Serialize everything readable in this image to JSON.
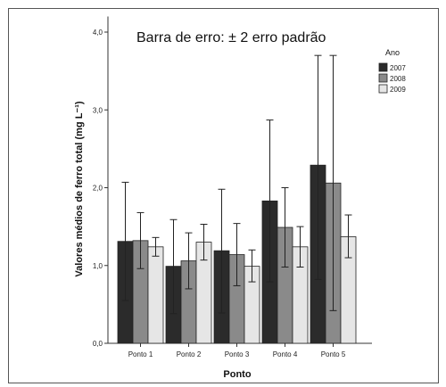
{
  "chart_data": {
    "type": "bar",
    "title": "Barra de erro: ± 2 erro padrão",
    "xlabel": "Ponto",
    "ylabel": "Valores médios de ferro total (mg L⁻¹)",
    "categories": [
      "Ponto 1",
      "Ponto 2",
      "Ponto 3",
      "Ponto 4",
      "Ponto 5"
    ],
    "ylim": [
      0,
      4.2
    ],
    "yticks": [
      "0,0",
      "1,0",
      "2,0",
      "3,0",
      "4,0"
    ],
    "legend_title": "Ano",
    "legend_position": "top-right",
    "series": [
      {
        "name": "2007",
        "color": "#2b2b2b",
        "values": [
          1.31,
          0.99,
          1.19,
          1.83,
          2.29
        ],
        "err_low": [
          0.55,
          0.38,
          0.39,
          0.79,
          0.82
        ],
        "err_high": [
          2.07,
          1.59,
          1.98,
          2.87,
          3.7
        ]
      },
      {
        "name": "2008",
        "color": "#8a8a8a",
        "values": [
          1.32,
          1.06,
          1.14,
          1.49,
          2.06
        ],
        "err_low": [
          0.96,
          0.7,
          0.74,
          0.98,
          0.42
        ],
        "err_high": [
          1.68,
          1.42,
          1.54,
          2.0,
          3.7
        ]
      },
      {
        "name": "2009",
        "color": "#e6e6e6",
        "values": [
          1.24,
          1.3,
          0.99,
          1.24,
          1.37
        ],
        "err_low": [
          1.12,
          1.07,
          0.79,
          0.98,
          1.1
        ],
        "err_high": [
          1.36,
          1.53,
          1.2,
          1.5,
          1.65
        ]
      }
    ]
  }
}
